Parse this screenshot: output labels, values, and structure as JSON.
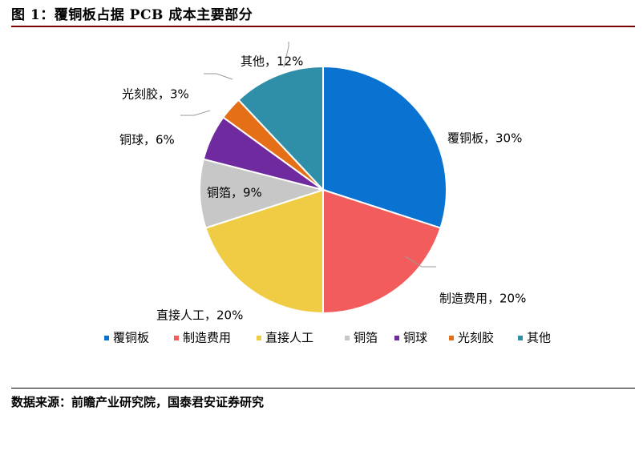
{
  "figure_title": "图 1：覆铜板占据 PCB 成本主要部分",
  "source": "数据来源：前瞻产业研究院，国泰君安证券研究",
  "chart_data": {
    "type": "pie",
    "title": "",
    "slices": [
      {
        "name": "覆铜板",
        "value": 30,
        "label": "覆铜板，30%",
        "color": "#0A73D2"
      },
      {
        "name": "制造费用",
        "value": 20,
        "label": "制造费用，20%",
        "color": "#F25C5C"
      },
      {
        "name": "直接人工",
        "value": 20,
        "label": "直接人工，20%",
        "color": "#F0CC45"
      },
      {
        "name": "铜箔",
        "value": 9,
        "label": "铜箔，9%",
        "color": "#C7C7C7"
      },
      {
        "name": "铜球",
        "value": 6,
        "label": "铜球，6%",
        "color": "#6E2A9E"
      },
      {
        "name": "光刻胶",
        "value": 3,
        "label": "光刻胶，3%",
        "color": "#E46F16"
      },
      {
        "name": "其他",
        "value": 12,
        "label": "其他，12%",
        "color": "#2F8FA8"
      }
    ],
    "legend": {
      "position": "bottom",
      "items": [
        "覆铜板",
        "制造费用",
        "直接人工",
        "铜箔",
        "铜球",
        "光刻胶",
        "其他"
      ]
    }
  }
}
